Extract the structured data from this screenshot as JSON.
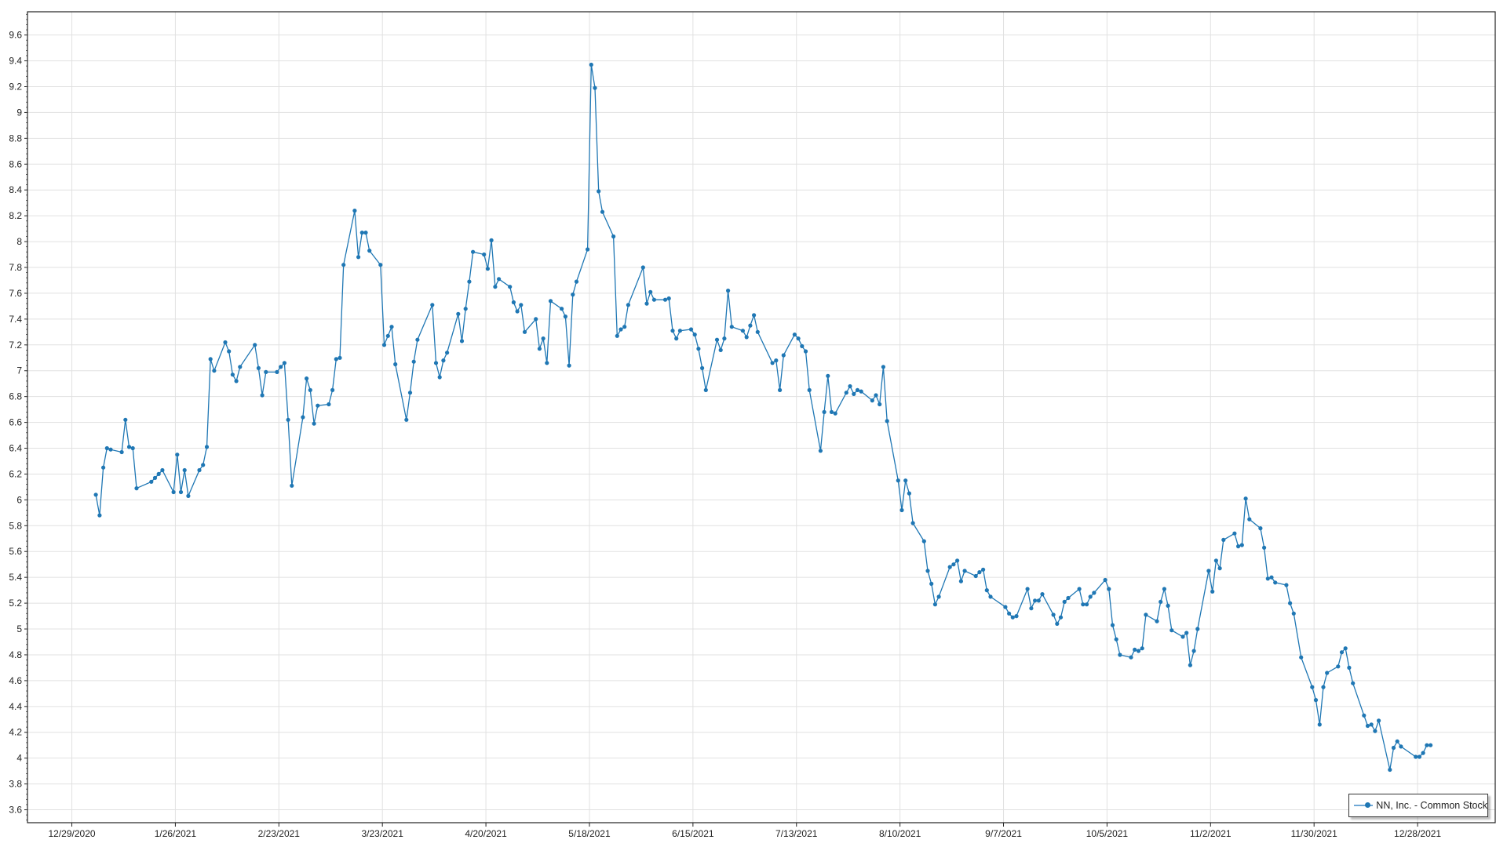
{
  "chart_data": {
    "type": "line",
    "title": "",
    "xlabel": "",
    "ylabel": "",
    "xlim": [
      "2020-12-17",
      "2022-01-18"
    ],
    "ylim": [
      3.5,
      9.78
    ],
    "grid": true,
    "legend_position": "bottom-right",
    "color": "#1f77b4",
    "y_ticks": [
      "3.6",
      "3.8",
      "4",
      "4.2",
      "4.4",
      "4.6",
      "4.8",
      "5",
      "5.2",
      "5.4",
      "5.6",
      "5.8",
      "6",
      "6.2",
      "6.4",
      "6.6",
      "6.8",
      "7",
      "7.2",
      "7.4",
      "7.6",
      "7.8",
      "8",
      "8.2",
      "8.4",
      "8.6",
      "8.8",
      "9",
      "9.2",
      "9.4",
      "9.6"
    ],
    "x_ticks": [
      {
        "date": "2020-12-29",
        "label": "12/29/2020"
      },
      {
        "date": "2021-01-26",
        "label": "1/26/2021"
      },
      {
        "date": "2021-02-23",
        "label": "2/23/2021"
      },
      {
        "date": "2021-03-23",
        "label": "3/23/2021"
      },
      {
        "date": "2021-04-20",
        "label": "4/20/2021"
      },
      {
        "date": "2021-05-18",
        "label": "5/18/2021"
      },
      {
        "date": "2021-06-15",
        "label": "6/15/2021"
      },
      {
        "date": "2021-07-13",
        "label": "7/13/2021"
      },
      {
        "date": "2021-08-10",
        "label": "8/10/2021"
      },
      {
        "date": "2021-09-07",
        "label": "9/7/2021"
      },
      {
        "date": "2021-10-05",
        "label": "10/5/2021"
      },
      {
        "date": "2021-11-02",
        "label": "11/2/2021"
      },
      {
        "date": "2021-11-30",
        "label": "11/30/2021"
      },
      {
        "date": "2021-12-28",
        "label": "12/28/2021"
      }
    ],
    "series": [
      {
        "name": "NN, Inc. - Common Stock",
        "points": [
          [
            "2021-01-04",
            6.04
          ],
          [
            "2021-01-05",
            5.88
          ],
          [
            "2021-01-06",
            6.25
          ],
          [
            "2021-01-07",
            6.4
          ],
          [
            "2021-01-08",
            6.39
          ],
          [
            "2021-01-11",
            6.37
          ],
          [
            "2021-01-12",
            6.62
          ],
          [
            "2021-01-13",
            6.41
          ],
          [
            "2021-01-14",
            6.4
          ],
          [
            "2021-01-15",
            6.09
          ],
          [
            "2021-01-19",
            6.14
          ],
          [
            "2021-01-20",
            6.17
          ],
          [
            "2021-01-21",
            6.2
          ],
          [
            "2021-01-22",
            6.23
          ],
          [
            "2021-01-25",
            6.06
          ],
          [
            "2021-01-26",
            6.35
          ],
          [
            "2021-01-27",
            6.06
          ],
          [
            "2021-01-28",
            6.23
          ],
          [
            "2021-01-29",
            6.03
          ],
          [
            "2021-02-01",
            6.23
          ],
          [
            "2021-02-02",
            6.27
          ],
          [
            "2021-02-03",
            6.41
          ],
          [
            "2021-02-04",
            7.09
          ],
          [
            "2021-02-05",
            7.0
          ],
          [
            "2021-02-08",
            7.22
          ],
          [
            "2021-02-09",
            7.15
          ],
          [
            "2021-02-10",
            6.97
          ],
          [
            "2021-02-11",
            6.92
          ],
          [
            "2021-02-12",
            7.03
          ],
          [
            "2021-02-16",
            7.2
          ],
          [
            "2021-02-17",
            7.02
          ],
          [
            "2021-02-18",
            6.81
          ],
          [
            "2021-02-19",
            6.99
          ],
          [
            "2021-02-22",
            6.99
          ],
          [
            "2021-02-23",
            7.03
          ],
          [
            "2021-02-24",
            7.06
          ],
          [
            "2021-02-25",
            6.62
          ],
          [
            "2021-02-26",
            6.11
          ],
          [
            "2021-03-01",
            6.64
          ],
          [
            "2021-03-02",
            6.94
          ],
          [
            "2021-03-03",
            6.85
          ],
          [
            "2021-03-04",
            6.59
          ],
          [
            "2021-03-05",
            6.73
          ],
          [
            "2021-03-08",
            6.74
          ],
          [
            "2021-03-09",
            6.85
          ],
          [
            "2021-03-10",
            7.09
          ],
          [
            "2021-03-11",
            7.1
          ],
          [
            "2021-03-12",
            7.82
          ],
          [
            "2021-03-15",
            8.24
          ],
          [
            "2021-03-16",
            7.88
          ],
          [
            "2021-03-17",
            8.07
          ],
          [
            "2021-03-18",
            8.07
          ],
          [
            "2021-03-19",
            7.93
          ],
          [
            "2021-03-22",
            7.82
          ],
          [
            "2021-03-23",
            7.2
          ],
          [
            "2021-03-24",
            7.27
          ],
          [
            "2021-03-25",
            7.34
          ],
          [
            "2021-03-26",
            7.05
          ],
          [
            "2021-03-29",
            6.62
          ],
          [
            "2021-03-30",
            6.83
          ],
          [
            "2021-03-31",
            7.07
          ],
          [
            "2021-04-01",
            7.24
          ],
          [
            "2021-04-05",
            7.51
          ],
          [
            "2021-04-06",
            7.06
          ],
          [
            "2021-04-07",
            6.95
          ],
          [
            "2021-04-08",
            7.08
          ],
          [
            "2021-04-09",
            7.14
          ],
          [
            "2021-04-12",
            7.44
          ],
          [
            "2021-04-13",
            7.23
          ],
          [
            "2021-04-14",
            7.48
          ],
          [
            "2021-04-15",
            7.69
          ],
          [
            "2021-04-16",
            7.92
          ],
          [
            "2021-04-19",
            7.9
          ],
          [
            "2021-04-20",
            7.79
          ],
          [
            "2021-04-21",
            8.01
          ],
          [
            "2021-04-22",
            7.65
          ],
          [
            "2021-04-23",
            7.71
          ],
          [
            "2021-04-26",
            7.65
          ],
          [
            "2021-04-27",
            7.53
          ],
          [
            "2021-04-28",
            7.46
          ],
          [
            "2021-04-29",
            7.51
          ],
          [
            "2021-04-30",
            7.3
          ],
          [
            "2021-05-03",
            7.4
          ],
          [
            "2021-05-04",
            7.17
          ],
          [
            "2021-05-05",
            7.25
          ],
          [
            "2021-05-06",
            7.06
          ],
          [
            "2021-05-07",
            7.54
          ],
          [
            "2021-05-10",
            7.48
          ],
          [
            "2021-05-11",
            7.42
          ],
          [
            "2021-05-12",
            7.04
          ],
          [
            "2021-05-13",
            7.59
          ],
          [
            "2021-05-14",
            7.69
          ],
          [
            "2021-05-17",
            7.94
          ],
          [
            "2021-05-18",
            9.37
          ],
          [
            "2021-05-19",
            9.19
          ],
          [
            "2021-05-20",
            8.39
          ],
          [
            "2021-05-21",
            8.23
          ],
          [
            "2021-05-24",
            8.04
          ],
          [
            "2021-05-25",
            7.27
          ],
          [
            "2021-05-26",
            7.32
          ],
          [
            "2021-05-27",
            7.34
          ],
          [
            "2021-05-28",
            7.51
          ],
          [
            "2021-06-01",
            7.8
          ],
          [
            "2021-06-02",
            7.52
          ],
          [
            "2021-06-03",
            7.61
          ],
          [
            "2021-06-04",
            7.55
          ],
          [
            "2021-06-07",
            7.55
          ],
          [
            "2021-06-08",
            7.56
          ],
          [
            "2021-06-09",
            7.31
          ],
          [
            "2021-06-10",
            7.25
          ],
          [
            "2021-06-11",
            7.31
          ],
          [
            "2021-06-14",
            7.32
          ],
          [
            "2021-06-15",
            7.28
          ],
          [
            "2021-06-16",
            7.17
          ],
          [
            "2021-06-17",
            7.02
          ],
          [
            "2021-06-18",
            6.85
          ],
          [
            "2021-06-21",
            7.24
          ],
          [
            "2021-06-22",
            7.16
          ],
          [
            "2021-06-23",
            7.25
          ],
          [
            "2021-06-24",
            7.62
          ],
          [
            "2021-06-25",
            7.34
          ],
          [
            "2021-06-28",
            7.31
          ],
          [
            "2021-06-29",
            7.26
          ],
          [
            "2021-06-30",
            7.35
          ],
          [
            "2021-07-01",
            7.43
          ],
          [
            "2021-07-02",
            7.3
          ],
          [
            "2021-07-06",
            7.06
          ],
          [
            "2021-07-07",
            7.08
          ],
          [
            "2021-07-08",
            6.85
          ],
          [
            "2021-07-09",
            7.12
          ],
          [
            "2021-07-12",
            7.28
          ],
          [
            "2021-07-13",
            7.25
          ],
          [
            "2021-07-14",
            7.19
          ],
          [
            "2021-07-15",
            7.15
          ],
          [
            "2021-07-16",
            6.85
          ],
          [
            "2021-07-19",
            6.38
          ],
          [
            "2021-07-20",
            6.68
          ],
          [
            "2021-07-21",
            6.96
          ],
          [
            "2021-07-22",
            6.68
          ],
          [
            "2021-07-23",
            6.67
          ],
          [
            "2021-07-26",
            6.83
          ],
          [
            "2021-07-27",
            6.88
          ],
          [
            "2021-07-28",
            6.82
          ],
          [
            "2021-07-29",
            6.85
          ],
          [
            "2021-07-30",
            6.84
          ],
          [
            "2021-08-02",
            6.77
          ],
          [
            "2021-08-03",
            6.81
          ],
          [
            "2021-08-04",
            6.74
          ],
          [
            "2021-08-05",
            7.03
          ],
          [
            "2021-08-06",
            6.61
          ],
          [
            "2021-08-09",
            6.15
          ],
          [
            "2021-08-10",
            5.92
          ],
          [
            "2021-08-11",
            6.15
          ],
          [
            "2021-08-12",
            6.05
          ],
          [
            "2021-08-13",
            5.82
          ],
          [
            "2021-08-16",
            5.68
          ],
          [
            "2021-08-17",
            5.45
          ],
          [
            "2021-08-18",
            5.35
          ],
          [
            "2021-08-19",
            5.19
          ],
          [
            "2021-08-20",
            5.25
          ],
          [
            "2021-08-23",
            5.48
          ],
          [
            "2021-08-24",
            5.5
          ],
          [
            "2021-08-25",
            5.53
          ],
          [
            "2021-08-26",
            5.37
          ],
          [
            "2021-08-27",
            5.45
          ],
          [
            "2021-08-30",
            5.41
          ],
          [
            "2021-08-31",
            5.44
          ],
          [
            "2021-09-01",
            5.46
          ],
          [
            "2021-09-02",
            5.3
          ],
          [
            "2021-09-03",
            5.25
          ],
          [
            "2021-09-07",
            5.17
          ],
          [
            "2021-09-08",
            5.12
          ],
          [
            "2021-09-09",
            5.09
          ],
          [
            "2021-09-10",
            5.1
          ],
          [
            "2021-09-13",
            5.31
          ],
          [
            "2021-09-14",
            5.16
          ],
          [
            "2021-09-15",
            5.22
          ],
          [
            "2021-09-16",
            5.22
          ],
          [
            "2021-09-17",
            5.27
          ],
          [
            "2021-09-20",
            5.11
          ],
          [
            "2021-09-21",
            5.04
          ],
          [
            "2021-09-22",
            5.09
          ],
          [
            "2021-09-23",
            5.21
          ],
          [
            "2021-09-24",
            5.24
          ],
          [
            "2021-09-27",
            5.31
          ],
          [
            "2021-09-28",
            5.19
          ],
          [
            "2021-09-29",
            5.19
          ],
          [
            "2021-09-30",
            5.25
          ],
          [
            "2021-10-01",
            5.28
          ],
          [
            "2021-10-04",
            5.38
          ],
          [
            "2021-10-05",
            5.31
          ],
          [
            "2021-10-06",
            5.03
          ],
          [
            "2021-10-07",
            4.92
          ],
          [
            "2021-10-08",
            4.8
          ],
          [
            "2021-10-11",
            4.78
          ],
          [
            "2021-10-12",
            4.84
          ],
          [
            "2021-10-13",
            4.83
          ],
          [
            "2021-10-14",
            4.85
          ],
          [
            "2021-10-15",
            5.11
          ],
          [
            "2021-10-18",
            5.06
          ],
          [
            "2021-10-19",
            5.21
          ],
          [
            "2021-10-20",
            5.31
          ],
          [
            "2021-10-21",
            5.18
          ],
          [
            "2021-10-22",
            4.99
          ],
          [
            "2021-10-25",
            4.94
          ],
          [
            "2021-10-26",
            4.97
          ],
          [
            "2021-10-27",
            4.72
          ],
          [
            "2021-10-28",
            4.83
          ],
          [
            "2021-10-29",
            5.0
          ],
          [
            "2021-11-01",
            5.45
          ],
          [
            "2021-11-02",
            5.29
          ],
          [
            "2021-11-03",
            5.53
          ],
          [
            "2021-11-04",
            5.47
          ],
          [
            "2021-11-05",
            5.69
          ],
          [
            "2021-11-08",
            5.74
          ],
          [
            "2021-11-09",
            5.64
          ],
          [
            "2021-11-10",
            5.65
          ],
          [
            "2021-11-11",
            6.01
          ],
          [
            "2021-11-12",
            5.85
          ],
          [
            "2021-11-15",
            5.78
          ],
          [
            "2021-11-16",
            5.63
          ],
          [
            "2021-11-17",
            5.39
          ],
          [
            "2021-11-18",
            5.4
          ],
          [
            "2021-11-19",
            5.36
          ],
          [
            "2021-11-22",
            5.34
          ],
          [
            "2021-11-23",
            5.2
          ],
          [
            "2021-11-24",
            5.12
          ],
          [
            "2021-11-26",
            4.78
          ],
          [
            "2021-11-29",
            4.55
          ],
          [
            "2021-11-30",
            4.45
          ],
          [
            "2021-12-01",
            4.26
          ],
          [
            "2021-12-02",
            4.55
          ],
          [
            "2021-12-03",
            4.66
          ],
          [
            "2021-12-06",
            4.71
          ],
          [
            "2021-12-07",
            4.82
          ],
          [
            "2021-12-08",
            4.85
          ],
          [
            "2021-12-09",
            4.7
          ],
          [
            "2021-12-10",
            4.58
          ],
          [
            "2021-12-13",
            4.33
          ],
          [
            "2021-12-14",
            4.25
          ],
          [
            "2021-12-15",
            4.26
          ],
          [
            "2021-12-16",
            4.21
          ],
          [
            "2021-12-17",
            4.29
          ],
          [
            "2021-12-20",
            3.91
          ],
          [
            "2021-12-21",
            4.08
          ],
          [
            "2021-12-22",
            4.13
          ],
          [
            "2021-12-23",
            4.09
          ],
          [
            "2021-12-27",
            4.01
          ],
          [
            "2021-12-28",
            4.01
          ],
          [
            "2021-12-29",
            4.04
          ],
          [
            "2021-12-30",
            4.1
          ],
          [
            "2021-12-31",
            4.1
          ]
        ]
      }
    ]
  },
  "legend": {
    "label": "NN, Inc. - Common Stock"
  }
}
